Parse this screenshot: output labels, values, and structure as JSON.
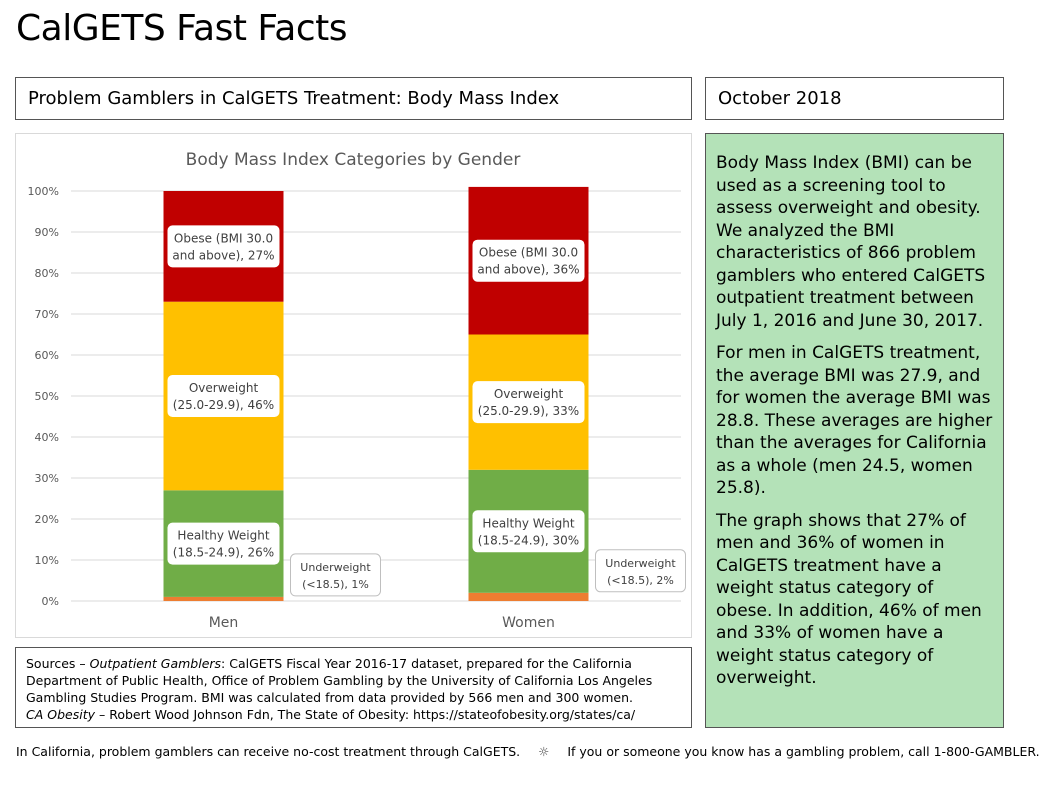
{
  "page_title": "CalGETS Fast Facts",
  "subtitle": "Problem Gamblers in CalGETS Treatment: Body Mass Index",
  "date": "October 2018",
  "chart_data": {
    "type": "bar",
    "stacked": true,
    "percent": true,
    "title": "Body Mass Index Categories by Gender",
    "categories": [
      "Men",
      "Women"
    ],
    "ylim": [
      0,
      100
    ],
    "yticks": [
      "0%",
      "10%",
      "20%",
      "30%",
      "40%",
      "50%",
      "60%",
      "70%",
      "80%",
      "90%",
      "100%"
    ],
    "grid": true,
    "series": [
      {
        "name": "Underweight (<18.5)",
        "values": [
          1,
          2
        ],
        "color": "#ed7d31",
        "labels": [
          [
            "Underweight",
            "(<18.5), 1%"
          ],
          [
            "Underweight",
            "(<18.5), 2%"
          ]
        ]
      },
      {
        "name": "Healthy Weight (18.5-24.9)",
        "values": [
          26,
          30
        ],
        "color": "#70ad47",
        "labels": [
          [
            "Healthy Weight",
            "(18.5-24.9), 26%"
          ],
          [
            "Healthy Weight",
            "(18.5-24.9), 30%"
          ]
        ]
      },
      {
        "name": "Overweight (25.0-29.9)",
        "values": [
          46,
          33
        ],
        "color": "#ffc000",
        "labels": [
          [
            "Overweight",
            "(25.0-29.9), 46%"
          ],
          [
            "Overweight",
            "(25.0-29.9), 33%"
          ]
        ]
      },
      {
        "name": "Obese (BMI 30.0 and above)",
        "values": [
          27,
          36
        ],
        "color": "#c00000",
        "labels": [
          [
            "Obese (BMI 30.0",
            "and above), 27%"
          ],
          [
            "Obese (BMI 30.0",
            "and above), 36%"
          ]
        ]
      }
    ]
  },
  "sources": {
    "label": "Sources – ",
    "item1_title": "Outpatient Gamblers",
    "item1_text": ": CalGETS Fiscal Year 2016-17 dataset, prepared for the California Department of Public Health, Office of Problem Gambling by the University of California Los Angeles Gambling Studies Program. BMI was calculated from data provided by 566 men and 300 women.",
    "item2_title": "CA Obesity",
    "item2_text": " – Robert Wood Johnson Fdn, The State of Obesity: https://stateofobesity.org/states/ca/"
  },
  "side_text": {
    "p1": "Body Mass Index (BMI) can be used as a screening tool to assess overweight and obesity. We analyzed the BMI characteristics of 866 problem gamblers who entered CalGETS outpatient treatment between July 1, 2016 and June 30, 2017.",
    "p2": "For men in CalGETS treatment, the average BMI was 27.9, and for women the average BMI was 28.8. These averages are higher than the averages for California as a whole (men 24.5, women 25.8).",
    "p3": "The graph shows that 27% of men and 36% of women in CalGETS treatment have a weight status category of obese. In addition, 46% of men and 33% of women have a weight status category of overweight."
  },
  "footer": {
    "left": "In California, problem gamblers can receive no-cost treatment through CalGETS.",
    "separator": "☼",
    "right": "If you or someone you know has a gambling problem, call 1-800-GAMBLER."
  }
}
